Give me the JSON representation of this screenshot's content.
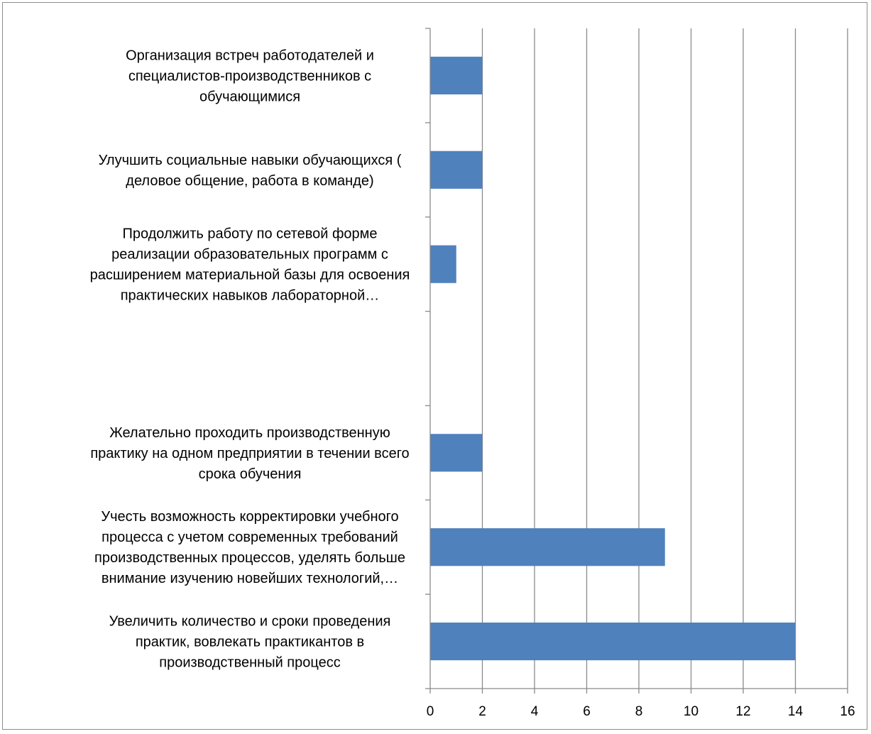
{
  "chart_data": {
    "type": "bar",
    "orientation": "horizontal",
    "title": "",
    "xlabel": "",
    "ylabel": "",
    "xlim": [
      0,
      16
    ],
    "x_ticks": [
      0,
      2,
      4,
      6,
      8,
      10,
      12,
      14,
      16
    ],
    "grid": "vertical-major",
    "legend": "none",
    "bar_color": "#4f81bd",
    "categories": [
      {
        "label_lines": [
          "Организация встреч работодателей и",
          "специалистов-производственников  с",
          "обучающимися"
        ],
        "value": 2
      },
      {
        "label_lines": [
          "Улучшить социальные навыки обучающихся (",
          "деловое общение, работа в команде)"
        ],
        "value": 2
      },
      {
        "label_lines": [
          "Продолжить работу по сетевой форме",
          "реализации образовательных программ с",
          "расширением материальной базы для освоения",
          "практических навыков лабораторной…"
        ],
        "value": 1
      },
      {
        "label_lines": [],
        "value": null
      },
      {
        "label_lines": [
          "Желательно проходить производственную",
          "практику на одном предприятии в течении всего",
          "срока обучения"
        ],
        "value": 2
      },
      {
        "label_lines": [
          "Учесть возможность корректировки учебного",
          "процесса с учетом современных требований",
          "производственных процессов, уделять больше",
          "внимание изучению новейших технологий,…"
        ],
        "value": 9
      },
      {
        "label_lines": [
          "Увеличить количество и сроки проведения",
          "практик, вовлекать практикантов в",
          "производственный процесс"
        ],
        "value": 14
      }
    ]
  }
}
